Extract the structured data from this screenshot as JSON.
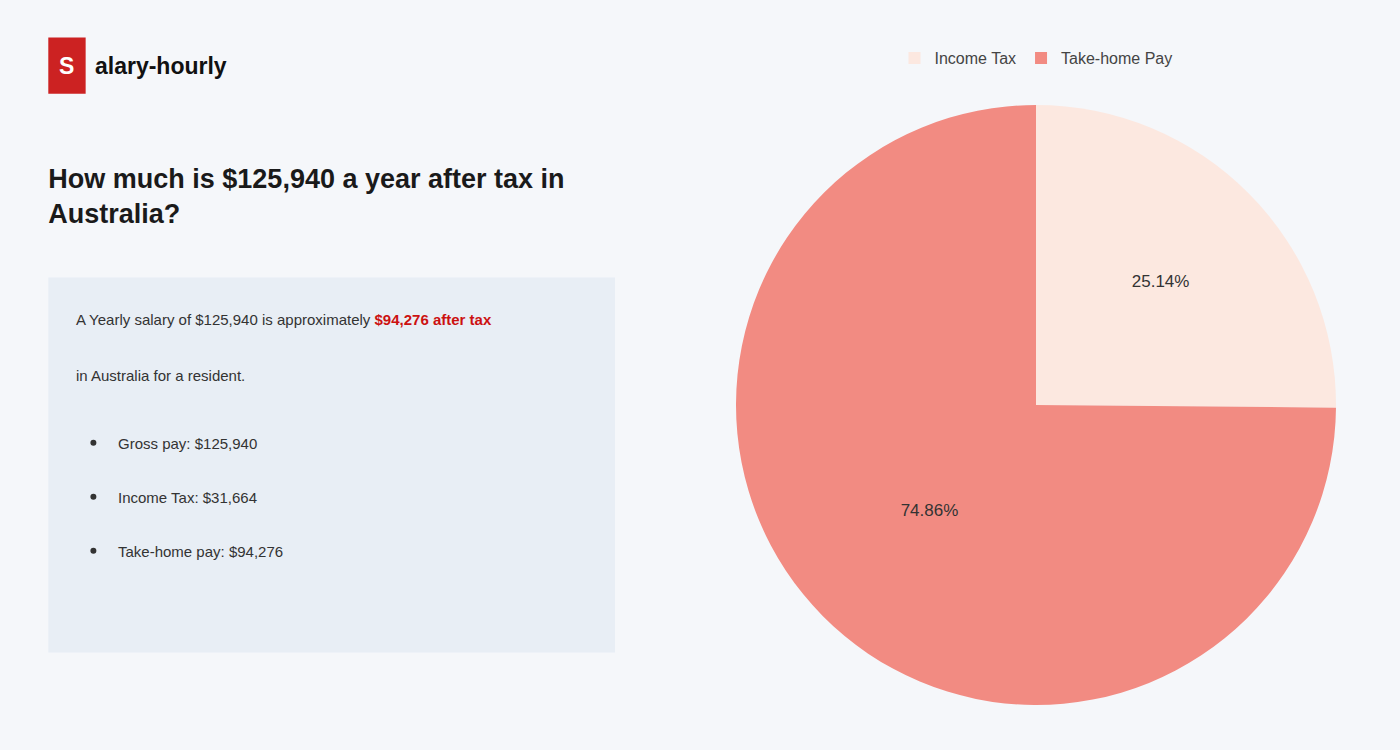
{
  "chart_data": {
    "type": "pie",
    "title": "How much is $125,940 a year after tax in\nAustralia?",
    "annotations": [
      "S",
      "alary-hourly",
      "A Yearly salary of $125,940 is approximately ",
      "$94,276 after tax",
      "in Australia for a resident.",
      "Gross pay: $125,940",
      "Income Tax: $31,664",
      "Take-home pay: $94,276"
    ],
    "categories": [
      "Income Tax",
      "Take-home Pay"
    ],
    "values": [
      25.14,
      74.86
    ],
    "value_labels": [
      "25.14%",
      "74.86%"
    ],
    "data_labels": true,
    "colors": [
      "#fce8e0",
      "#f28b82"
    ],
    "legend": "top"
  }
}
